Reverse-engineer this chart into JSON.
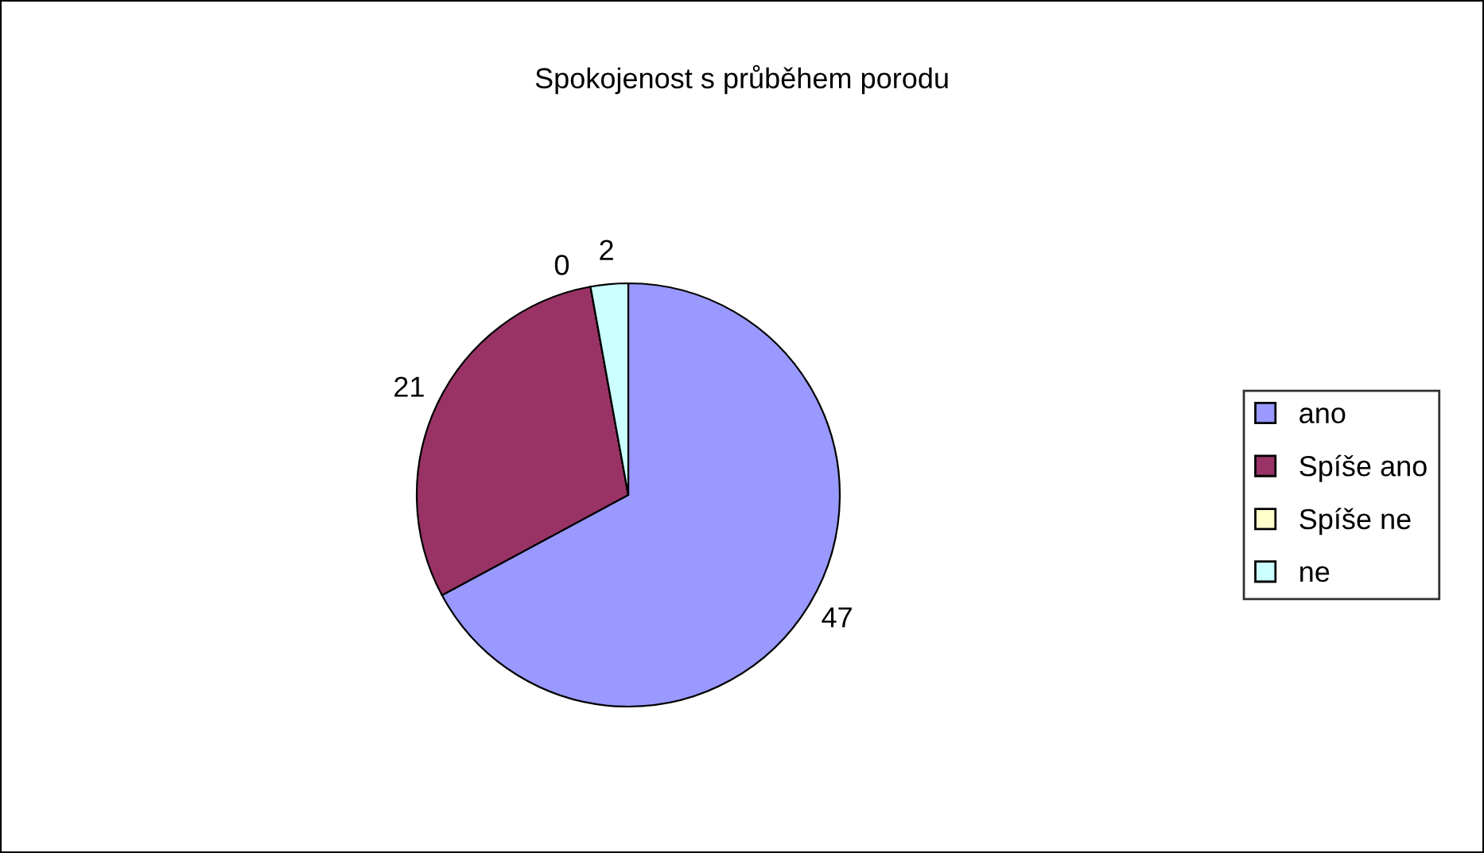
{
  "chart_data": {
    "type": "pie",
    "title": "Spokojenost s průběhem porodu",
    "categories": [
      "ano",
      "Spíše ano",
      "Spíše ne",
      "ne"
    ],
    "values": [
      47,
      21,
      0,
      2
    ],
    "colors": [
      "#9999ff",
      "#993366",
      "#ffffcc",
      "#ccffff"
    ],
    "value_labels": [
      "47",
      "21",
      "0",
      "2"
    ],
    "legend": "right"
  }
}
